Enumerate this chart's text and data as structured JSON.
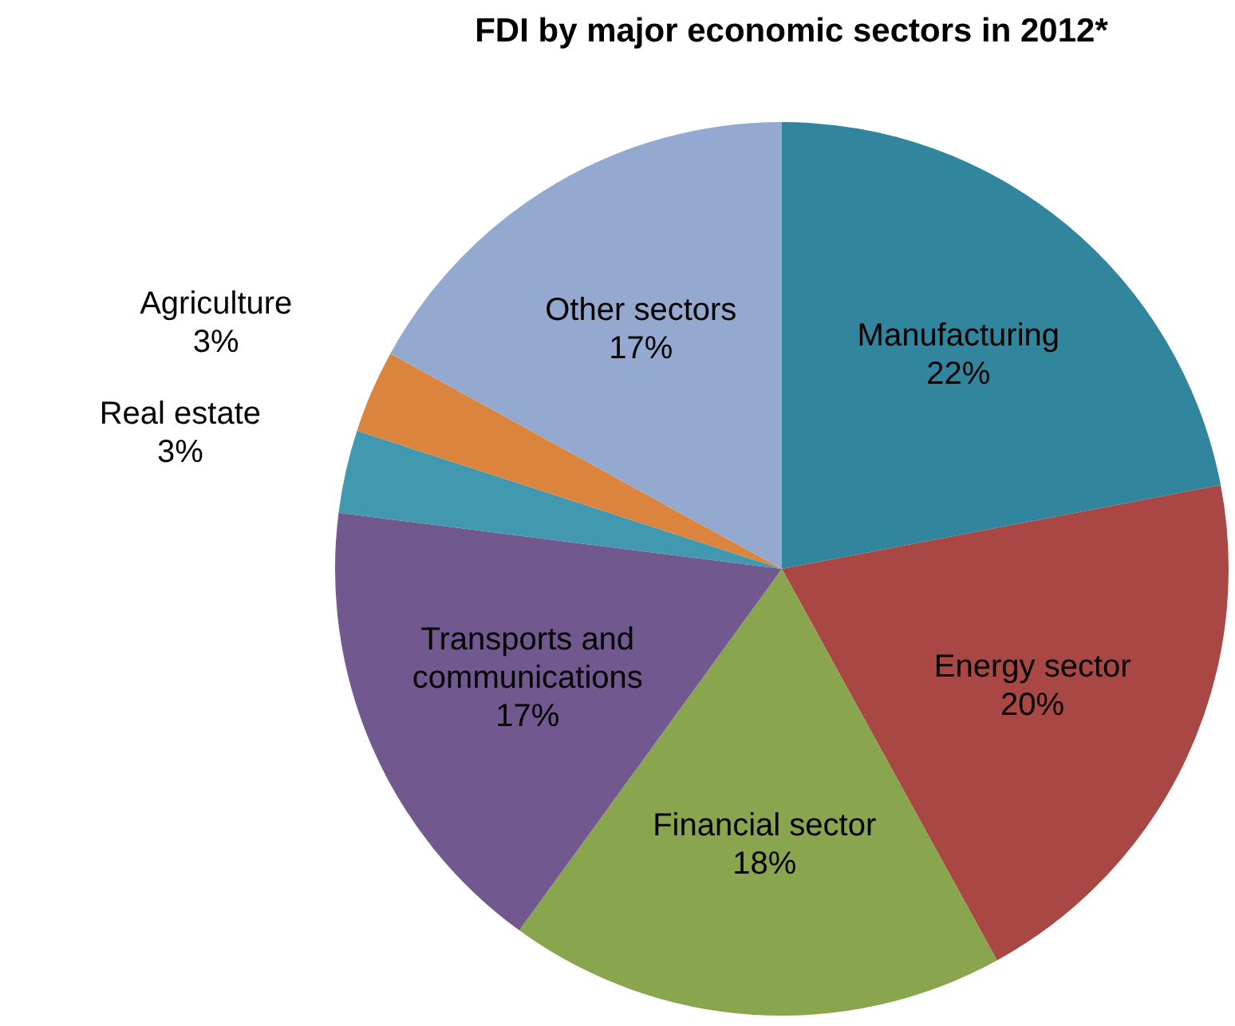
{
  "chart_data": {
    "type": "pie",
    "title": "FDI by major economic sectors in 2012*",
    "categories": [
      "Manufacturing",
      "Energy sector",
      "Financial sector",
      "Transports and communications",
      "Real estate",
      "Agriculture",
      "Other sectors"
    ],
    "values": [
      22,
      20,
      18,
      17,
      3,
      3,
      17
    ],
    "value_labels": [
      "22%",
      "20%",
      "18%",
      "17%",
      "3%",
      "3%",
      "17%"
    ],
    "colors": [
      "#31859c",
      "#a94745",
      "#89a54e",
      "#71588f",
      "#4198af",
      "#db843d",
      "#93a9cf"
    ]
  }
}
